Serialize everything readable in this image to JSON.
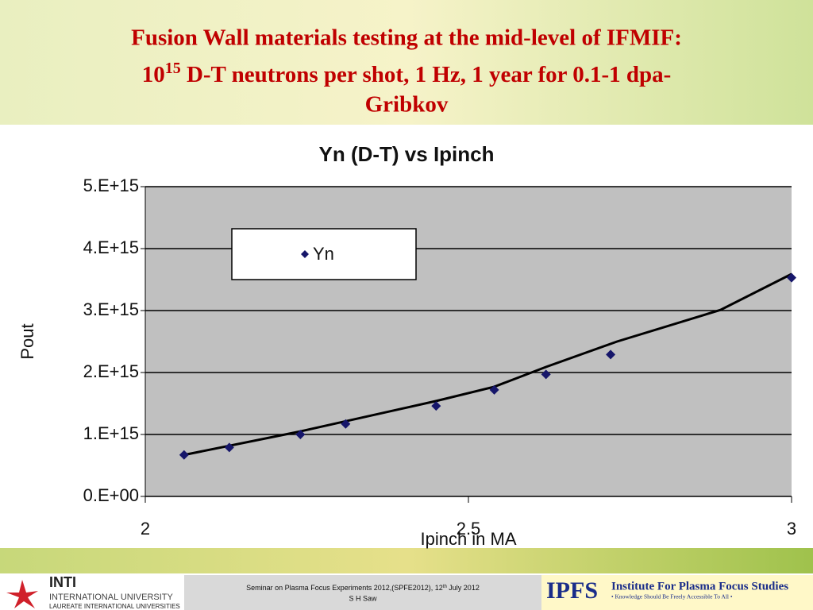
{
  "slide": {
    "title_line1": "Fusion Wall materials testing at the mid-level of IFMIF:",
    "title_base": "10",
    "title_sup": "15",
    "title_line2_rest": " D-T neutrons per shot, 1 Hz, 1 year for 0.1-1 dpa-",
    "title_line3": "Gribkov"
  },
  "chart_data": {
    "type": "scatter",
    "title": "Yn (D-T) vs Ipinch",
    "x_label": "Ipinch in MA",
    "y_label": "Pout",
    "xlim": [
      2,
      3
    ],
    "ylim": [
      0,
      5000000000000000.0
    ],
    "xticks": [
      2,
      2.5,
      3
    ],
    "yticks": [
      {
        "value": 0,
        "label": "0.E+00"
      },
      {
        "value": 1000000000000000.0,
        "label": "1.E+15"
      },
      {
        "value": 2000000000000000.0,
        "label": "2.E+15"
      },
      {
        "value": 3000000000000000.0,
        "label": "3.E+15"
      },
      {
        "value": 4000000000000000.0,
        "label": "4.E+15"
      },
      {
        "value": 5000000000000000.0,
        "label": "5.E+15"
      }
    ],
    "grid": true,
    "plot_background": "#c0c0c0",
    "legend": "top-left",
    "series": [
      {
        "name": "Yn",
        "color": "#16166a",
        "x": [
          2.06,
          2.13,
          2.24,
          2.31,
          2.45,
          2.54,
          2.62,
          2.72,
          3.0
        ],
        "values": [
          670000000000000.0,
          790000000000000.0,
          1000000000000000.0,
          1170000000000000.0,
          1460000000000000.0,
          1720000000000000.0,
          1970000000000000.0,
          2290000000000000.0,
          3530000000000000.0
        ]
      }
    ],
    "trendline": {
      "color": "#000000",
      "x": [
        2.06,
        2.24,
        2.45,
        2.54,
        2.62,
        2.73,
        2.89,
        3.0
      ],
      "y": [
        670000000000000.0,
        1050000000000000.0,
        1540000000000000.0,
        1770000000000000.0,
        2090000000000000.0,
        2500000000000000.0,
        3010000000000000.0,
        3590000000000000.0
      ]
    }
  },
  "footer": {
    "inti": "INTI",
    "inti_sub": "INTERNATIONAL UNIVERSITY",
    "laureate": "LAUREATE INTERNATIONAL UNIVERSITIES",
    "seminar_a": "Seminar on Plasma Focus Experiments 2012,(SPFE2012), 12",
    "seminar_sup": "th",
    "seminar_b": " July 2012",
    "author": "S H Saw",
    "ipfs": "IPFS",
    "ipfs_name": "Institute For Plasma Focus Studies",
    "ipfs_motto": "• Knowledge Should Be Freely Accessible To All •"
  }
}
